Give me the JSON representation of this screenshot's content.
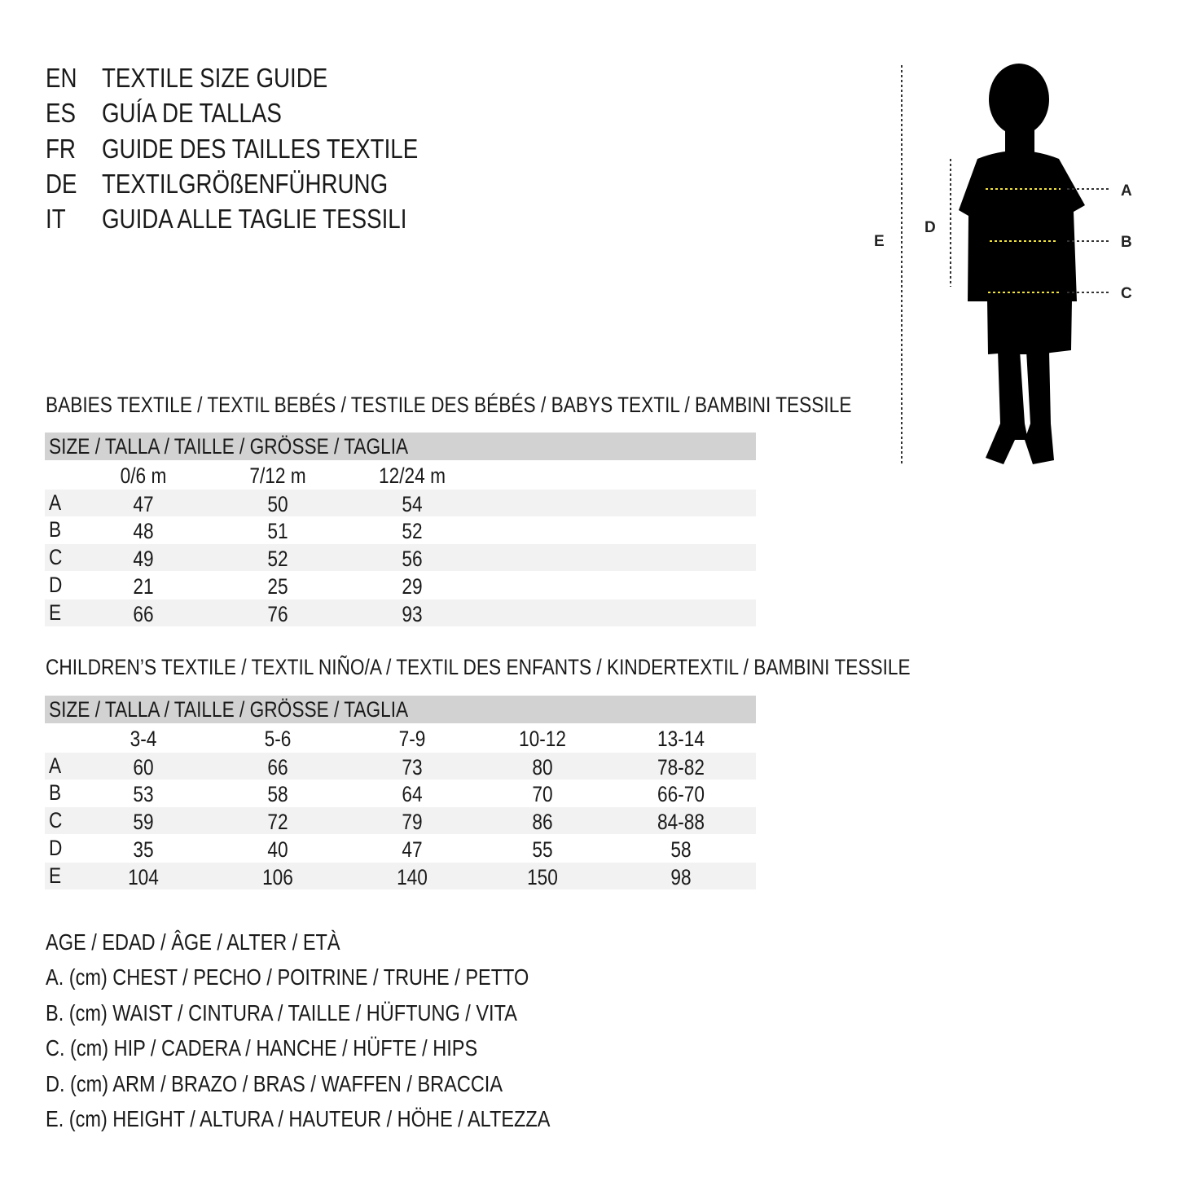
{
  "titles": [
    {
      "code": "EN",
      "text": "TEXTILE SIZE GUIDE"
    },
    {
      "code": "ES",
      "text": "GUÍA DE TALLAS"
    },
    {
      "code": "FR",
      "text": "GUIDE DES TAILLES TEXTILE"
    },
    {
      "code": "DE",
      "text": "TEXTILGRÖßENFÜHRUNG"
    },
    {
      "code": "IT",
      "text": "GUIDA ALLE TAGLIE TESSILI"
    }
  ],
  "figure": {
    "labels": {
      "a": "A",
      "b": "B",
      "c": "C",
      "d": "D",
      "e": "E"
    },
    "accent": "#f2e33a"
  },
  "babies": {
    "title": "BABIES TEXTILE / TEXTIL BEBÉS / TESTILE DES BÉBÉS / BABYS TEXTIL / BAMBINI TESSILE",
    "header": "SIZE / TALLA / TAILLE / GRÖSSE / TAGLIA",
    "columns": [
      "0/6 m",
      "7/12 m",
      "12/24 m"
    ],
    "rows": [
      {
        "label": "A",
        "values": [
          "47",
          "50",
          "54"
        ]
      },
      {
        "label": "B",
        "values": [
          "48",
          "51",
          "52"
        ]
      },
      {
        "label": "C",
        "values": [
          "49",
          "52",
          "56"
        ]
      },
      {
        "label": "D",
        "values": [
          "21",
          "25",
          "29"
        ]
      },
      {
        "label": "E",
        "values": [
          "66",
          "76",
          "93"
        ]
      }
    ]
  },
  "children": {
    "title": "CHILDREN’S TEXTILE / TEXTIL NIÑO/A / TEXTIL DES ENFANTS / KINDERTEXTIL / BAMBINI TESSILE",
    "header": "SIZE / TALLA / TAILLE / GRÖSSE / TAGLIA",
    "columns": [
      "3-4",
      "5-6",
      "7-9",
      "10-12",
      "13-14"
    ],
    "rows": [
      {
        "label": "A",
        "values": [
          "60",
          "66",
          "73",
          "80",
          "78-82"
        ]
      },
      {
        "label": "B",
        "values": [
          "53",
          "58",
          "64",
          "70",
          "66-70"
        ]
      },
      {
        "label": "C",
        "values": [
          "59",
          "72",
          "79",
          "86",
          "84-88"
        ]
      },
      {
        "label": "D",
        "values": [
          "35",
          "40",
          "47",
          "55",
          "58"
        ]
      },
      {
        "label": "E",
        "values": [
          "104",
          "106",
          "140",
          "150",
          "98"
        ]
      }
    ]
  },
  "legend": [
    "AGE / EDAD / ÂGE / ALTER / ETÀ",
    "A. (cm) CHEST / PECHO / POITRINE / TRUHE / PETTO",
    "B. (cm) WAIST / CINTURA / TAILLE / HÜFTUNG / VITA",
    "C. (cm) HIP / CADERA / HANCHE / HÜFTE / HIPS",
    "D. (cm) ARM / BRAZO / BRAS / WAFFEN / BRACCIA",
    "E. (cm) HEIGHT / ALTURA / HAUTEUR / HÖHE / ALTEZZA"
  ]
}
